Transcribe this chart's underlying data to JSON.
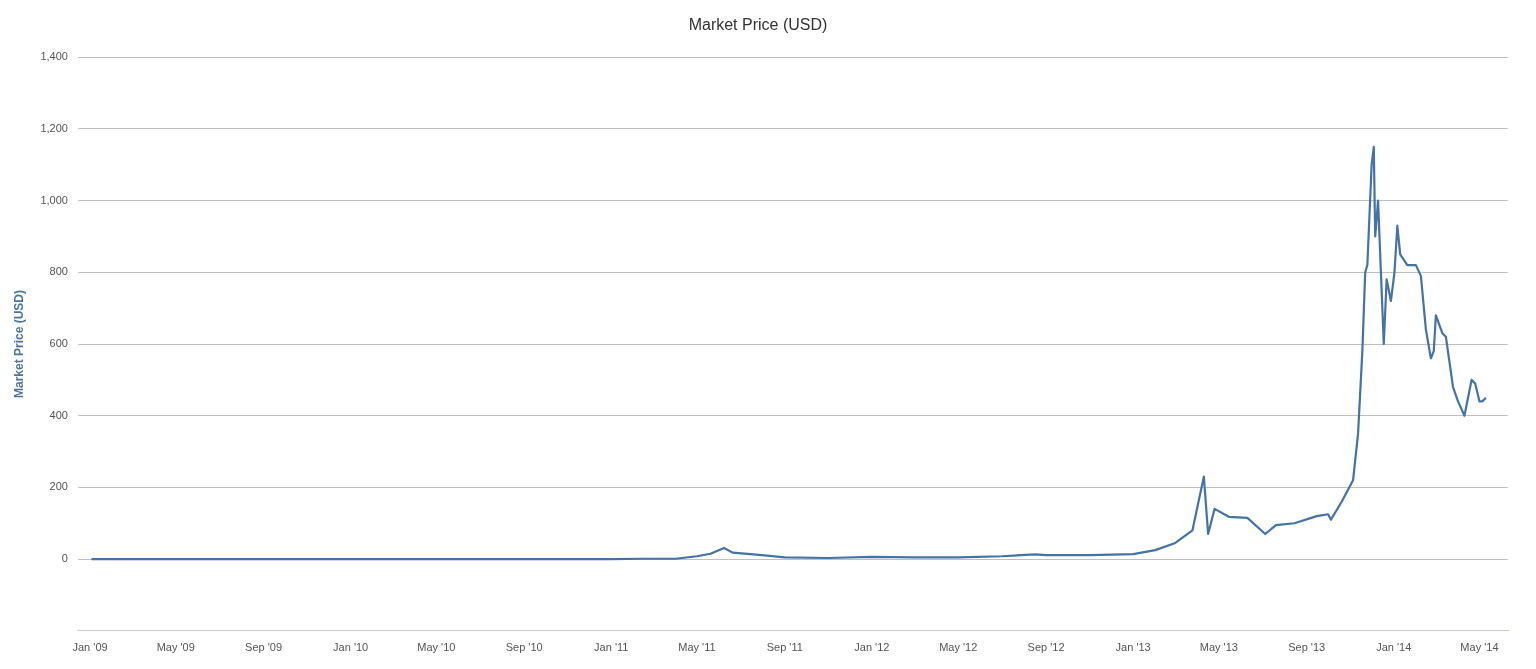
{
  "chart_data": {
    "type": "line",
    "title": "Market Price (USD)",
    "ylabel": "Market Price (USD)",
    "x": [
      "2009-01-03",
      "2009-06-01",
      "2010-01-01",
      "2010-07-15",
      "2010-10-01",
      "2011-01-01",
      "2011-02-15",
      "2011-04-01",
      "2011-05-01",
      "2011-05-20",
      "2011-06-08",
      "2011-06-20",
      "2011-07-15",
      "2011-09-01",
      "2011-11-01",
      "2012-01-01",
      "2012-03-01",
      "2012-05-01",
      "2012-07-01",
      "2012-08-17",
      "2012-09-01",
      "2012-11-01",
      "2013-01-01",
      "2013-02-01",
      "2013-03-01",
      "2013-03-25",
      "2013-04-10",
      "2013-04-16",
      "2013-04-25",
      "2013-05-15",
      "2013-06-10",
      "2013-07-05",
      "2013-07-20",
      "2013-08-15",
      "2013-09-15",
      "2013-10-01",
      "2013-10-05",
      "2013-10-20",
      "2013-11-05",
      "2013-11-12",
      "2013-11-18",
      "2013-11-22",
      "2013-11-25",
      "2013-12-01",
      "2013-12-04",
      "2013-12-06",
      "2013-12-10",
      "2013-12-18",
      "2013-12-22",
      "2013-12-28",
      "2014-01-02",
      "2014-01-06",
      "2014-01-10",
      "2014-01-20",
      "2014-02-01",
      "2014-02-08",
      "2014-02-15",
      "2014-02-22",
      "2014-02-26",
      "2014-03-01",
      "2014-03-10",
      "2014-03-15",
      "2014-03-25",
      "2014-04-01",
      "2014-04-10",
      "2014-04-15",
      "2014-04-20",
      "2014-04-25",
      "2014-05-01",
      "2014-05-05",
      "2014-05-10"
    ],
    "series": [
      {
        "color": "#4572a7",
        "values": [
          0,
          0,
          0,
          0,
          0,
          0,
          1,
          1,
          8,
          15,
          31,
          18,
          14,
          5,
          3,
          6,
          5,
          5,
          8,
          13,
          11,
          11,
          14,
          25,
          45,
          80,
          230,
          70,
          140,
          118,
          115,
          70,
          95,
          100,
          120,
          125,
          110,
          160,
          220,
          350,
          580,
          800,
          820,
          1100,
          1150,
          900,
          1000,
          600,
          780,
          720,
          800,
          930,
          850,
          820,
          820,
          790,
          640,
          560,
          580,
          680,
          630,
          620,
          480,
          440,
          400,
          450,
          500,
          490,
          440,
          440,
          450
        ]
      }
    ],
    "xlim": [
      "2008-12-15",
      "2014-06-10"
    ],
    "xticks": [
      {
        "value": "2009-01",
        "label": "Jan '09"
      },
      {
        "value": "2009-05",
        "label": "May '09"
      },
      {
        "value": "2009-09",
        "label": "Sep '09"
      },
      {
        "value": "2010-01",
        "label": "Jan '10"
      },
      {
        "value": "2010-05",
        "label": "May '10"
      },
      {
        "value": "2010-09",
        "label": "Sep '10"
      },
      {
        "value": "2011-01",
        "label": "Jan '11"
      },
      {
        "value": "2011-05",
        "label": "May '11"
      },
      {
        "value": "2011-09",
        "label": "Sep '11"
      },
      {
        "value": "2012-01",
        "label": "Jan '12"
      },
      {
        "value": "2012-05",
        "label": "May '12"
      },
      {
        "value": "2012-09",
        "label": "Sep '12"
      },
      {
        "value": "2013-01",
        "label": "Jan '13"
      },
      {
        "value": "2013-05",
        "label": "May '13"
      },
      {
        "value": "2013-09",
        "label": "Sep '13"
      },
      {
        "value": "2014-01",
        "label": "Jan '14"
      },
      {
        "value": "2014-05",
        "label": "May '14"
      }
    ],
    "ylim": [
      -200,
      1400
    ],
    "yticks": [
      0,
      200,
      400,
      600,
      800,
      {
        "value": 1000,
        "label": "1,000"
      },
      {
        "value": 1200,
        "label": "1,200"
      },
      {
        "value": 1400,
        "label": "1,400"
      }
    ],
    "grid": "y",
    "legend": false,
    "marker": "none",
    "line_style": "solid"
  }
}
